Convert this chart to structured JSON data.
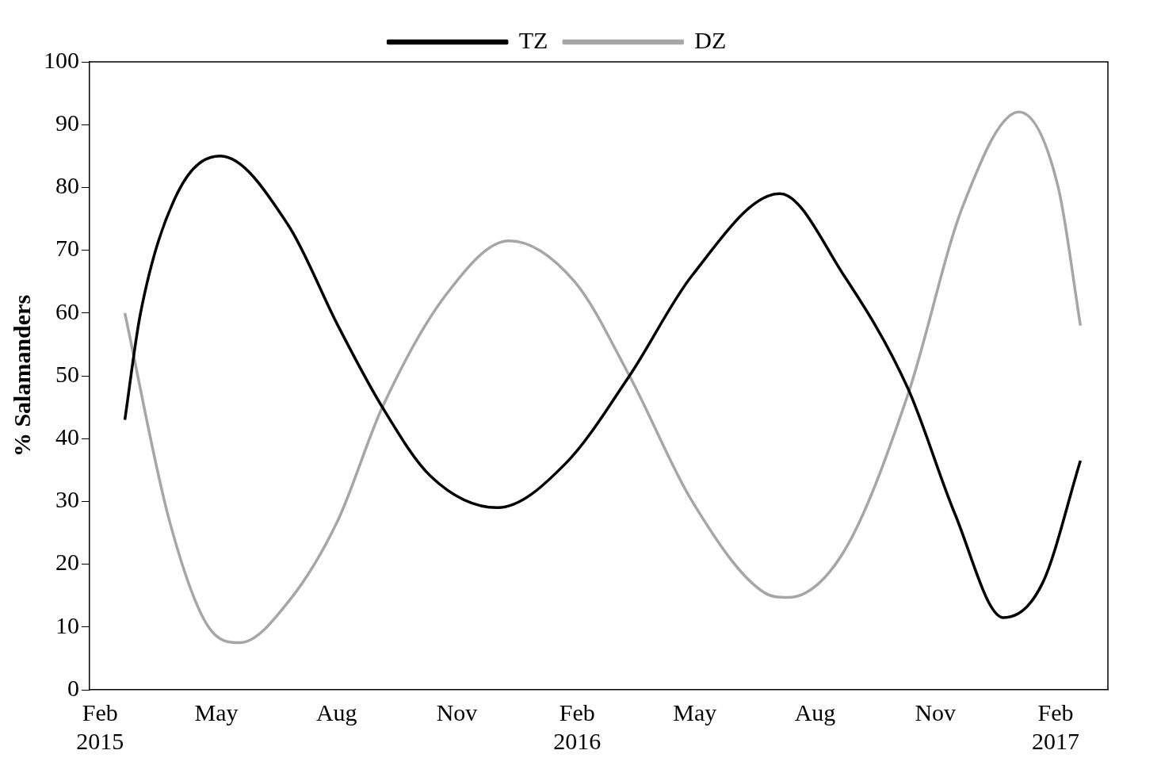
{
  "chart_data": {
    "type": "line",
    "ylabel": "% Salamanders",
    "xlim": [
      "2015-01-24",
      "2017-03-13"
    ],
    "ylim": [
      0,
      100
    ],
    "yticks": [
      0,
      10,
      20,
      30,
      40,
      50,
      60,
      70,
      80,
      90,
      100
    ],
    "xticks": [
      {
        "value": "2015-02-01",
        "label": "Feb\n2015"
      },
      {
        "value": "2015-05-01",
        "label": "May"
      },
      {
        "value": "2015-08-01",
        "label": "Aug"
      },
      {
        "value": "2015-11-01",
        "label": "Nov"
      },
      {
        "value": "2016-02-01",
        "label": "Feb\n2016"
      },
      {
        "value": "2016-05-01",
        "label": "May"
      },
      {
        "value": "2016-08-01",
        "label": "Aug"
      },
      {
        "value": "2016-11-01",
        "label": "Nov"
      },
      {
        "value": "2017-02-01",
        "label": "Feb\n2017"
      }
    ],
    "grid": false,
    "legend": "top",
    "marker": "none",
    "line_style": "solid",
    "series": [
      {
        "name": "TZ",
        "color": "#000000",
        "x": [
          "2015-02-20",
          "2015-03-04",
          "2015-04-01",
          "2015-05-04",
          "2015-06-25",
          "2015-08-02",
          "2015-09-05",
          "2015-10-12",
          "2015-12-02",
          "2016-01-23",
          "2016-03-12",
          "2016-04-29",
          "2016-07-05",
          "2016-08-23",
          "2016-10-11",
          "2016-11-16",
          "2016-12-23",
          "2017-01-22",
          "2017-02-20"
        ],
        "values": [
          43,
          60,
          79,
          85,
          74,
          58,
          45,
          34,
          29,
          36,
          50,
          66,
          79,
          66,
          48,
          28,
          11.5,
          17,
          36.5
        ]
      },
      {
        "name": "DZ",
        "color": "#a6a6a6",
        "x": [
          "2015-02-20",
          "2015-03-26",
          "2015-04-25",
          "2015-05-19",
          "2015-06-25",
          "2015-08-02",
          "2015-09-05",
          "2015-10-24",
          "2015-12-11",
          "2016-01-30",
          "2016-03-12",
          "2016-04-29",
          "2016-06-23",
          "2016-07-11",
          "2016-08-23",
          "2016-10-11",
          "2016-11-22",
          "2017-01-04",
          "2017-02-03",
          "2017-02-20"
        ],
        "values": [
          60,
          27,
          10,
          7.5,
          14,
          27,
          45,
          63,
          71.5,
          65,
          50,
          30,
          15.5,
          14.7,
          22,
          47,
          77,
          92,
          80,
          58
        ]
      }
    ]
  }
}
